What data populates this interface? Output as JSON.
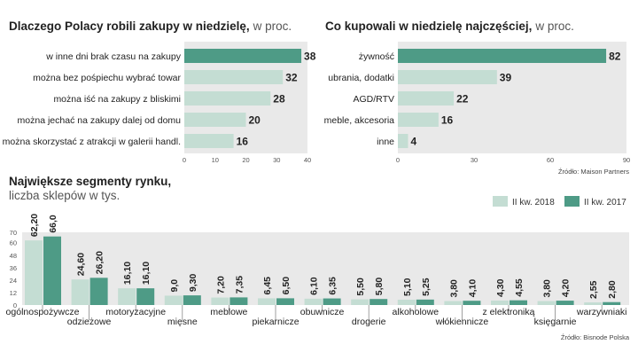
{
  "colors": {
    "accent": "#4e9b86",
    "light": "#c4ddd3",
    "panel": "#e9e9e9"
  },
  "chart_data": [
    {
      "type": "bar",
      "orientation": "horizontal",
      "title": "Dlaczego Polacy robili zakupy w niedzielę,",
      "subtitle": "w proc.",
      "categories": [
        "w inne dni brak czasu na zakupy",
        "można bez pośpiechu wybrać towar",
        "można iść na zakupy z bliskimi",
        "można jechać na zakupy dalej od domu",
        "można skorzystać z atrakcji w galerii handl."
      ],
      "values": [
        38,
        32,
        28,
        20,
        16
      ],
      "value_labels": [
        "38",
        "32",
        "28",
        "20",
        "16"
      ],
      "xlim": [
        0,
        40
      ],
      "xticks": [
        "0",
        "10",
        "20",
        "30",
        "40"
      ]
    },
    {
      "type": "bar",
      "orientation": "horizontal",
      "title": "Co kupowali w niedzielę najczęściej,",
      "subtitle": "w proc.",
      "categories": [
        "żywność",
        "ubrania, dodatki",
        "AGD/RTV",
        "meble, akcesoria",
        "inne"
      ],
      "values": [
        82,
        39,
        22,
        16,
        4
      ],
      "value_labels": [
        "82",
        "39",
        "22",
        "16",
        "4"
      ],
      "xlim": [
        0,
        90
      ],
      "xticks": [
        "0",
        "30",
        "60",
        "90"
      ],
      "source": "Źródło: Maison Partners"
    },
    {
      "type": "bar",
      "orientation": "vertical",
      "title": "Największe segmenty rynku,",
      "subtitle": "liczba sklepów w tys.",
      "categories": [
        "ogólnospożywcze",
        "odzieżowe",
        "motoryzacyjne",
        "mięsne",
        "meblowe",
        "piekarnicze",
        "obuwnicze",
        "drogerie",
        "alkoholowe",
        "włókiennicze",
        "z elektroniką",
        "księgarnie",
        "warzywniaki"
      ],
      "series": [
        {
          "name": "II kw. 2018",
          "values": [
            62.2,
            24.6,
            16.1,
            9.0,
            7.2,
            6.45,
            6.1,
            5.5,
            5.1,
            3.8,
            4.3,
            3.8,
            2.55
          ],
          "labels": [
            "62,20",
            "24,60",
            "16,10",
            "9,0",
            "7,20",
            "6,45",
            "6,10",
            "5,50",
            "5,10",
            "3,80",
            "4,30",
            "3,80",
            "2,55"
          ]
        },
        {
          "name": "II kw. 2017",
          "values": [
            66.0,
            26.2,
            16.1,
            9.3,
            7.35,
            6.5,
            6.35,
            5.8,
            5.25,
            4.1,
            4.55,
            4.2,
            2.8
          ],
          "labels": [
            "66,0",
            "26,20",
            "16,10",
            "9,30",
            "7,35",
            "6,50",
            "6,35",
            "5,80",
            "5,25",
            "4,10",
            "4,55",
            "4,20",
            "2,80"
          ]
        }
      ],
      "ylim": [
        0,
        70
      ],
      "yticks": [
        "0",
        "12",
        "24",
        "36",
        "48",
        "60",
        "70"
      ],
      "source": "Źródło: Bisnode Polska"
    }
  ]
}
